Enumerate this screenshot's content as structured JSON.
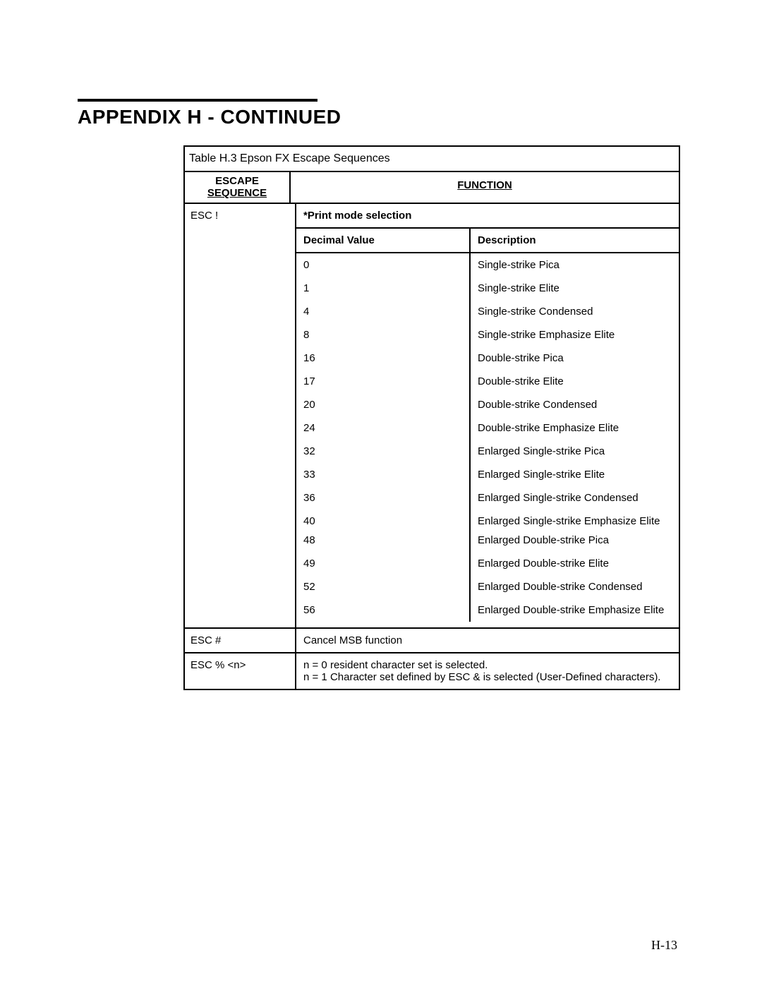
{
  "title": "APPENDIX H - CONTINUED",
  "tableCaption": "Table H.3  Epson FX Escape Sequences",
  "headers": {
    "escapeLine1": "ESCAPE",
    "escapeLine2": "SEQUENCE",
    "function": "FUNCTION"
  },
  "escExclaim": {
    "seq": "ESC !",
    "modeTitle": "*Print mode selection",
    "subheaders": {
      "decimal": "Decimal Value",
      "description": "Description"
    },
    "rows": [
      {
        "dec": "0",
        "desc": "Single-strike Pica"
      },
      {
        "dec": "1",
        "desc": "Single-strike Elite"
      },
      {
        "dec": "4",
        "desc": "Single-strike Condensed"
      },
      {
        "dec": "8",
        "desc": "Single-strike Emphasize Elite"
      },
      {
        "dec": "16",
        "desc": "Double-strike Pica"
      },
      {
        "dec": "17",
        "desc": "Double-strike Elite"
      },
      {
        "dec": "20",
        "desc": "Double-strike Condensed"
      },
      {
        "dec": "24",
        "desc": "Double-strike Emphasize Elite"
      },
      {
        "dec": "32",
        "desc": "Enlarged Single-strike Pica"
      },
      {
        "dec": "33",
        "desc": "Enlarged Single-strike Elite"
      },
      {
        "dec": "36",
        "desc": "Enlarged Single-strike Condensed"
      },
      {
        "dec": "40",
        "desc": "Enlarged Single-strike Emphasize Elite"
      },
      {
        "dec": "48",
        "desc": "Enlarged Double-strike Pica"
      },
      {
        "dec": "49",
        "desc": "Enlarged Double-strike Elite"
      },
      {
        "dec": "52",
        "desc": "Enlarged Double-strike Condensed"
      },
      {
        "dec": "56",
        "desc": "Enlarged Double-strike Emphasize Elite"
      }
    ]
  },
  "escHash": {
    "seq": "ESC #",
    "func": "Cancel MSB function"
  },
  "escPercent": {
    "seq": "ESC % <n>",
    "line1": "n = 0 resident character set is selected.",
    "line2": "n = 1  Character set defined by ESC & is selected (User-Defined characters)."
  },
  "pageNumber": "H-13"
}
